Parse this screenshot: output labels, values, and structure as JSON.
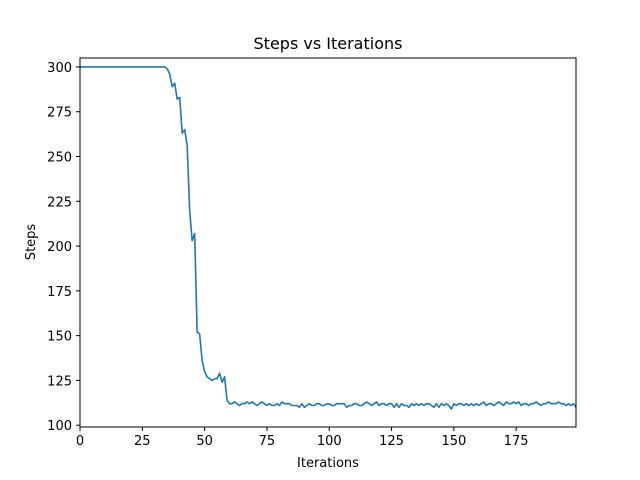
{
  "chart_data": {
    "type": "line",
    "title": "Steps vs Iterations",
    "xlabel": "Iterations",
    "ylabel": "Steps",
    "xlim": [
      0,
      199
    ],
    "ylim": [
      99,
      305
    ],
    "xticks": [
      0,
      25,
      50,
      75,
      100,
      125,
      150,
      175
    ],
    "yticks": [
      100,
      125,
      150,
      175,
      200,
      225,
      250,
      275,
      300
    ],
    "grid": false,
    "series": [
      {
        "color": "#1f77b4",
        "values": [
          300,
          300,
          300,
          300,
          300,
          300,
          300,
          300,
          300,
          300,
          300,
          300,
          300,
          300,
          300,
          300,
          300,
          300,
          300,
          300,
          300,
          300,
          300,
          300,
          300,
          300,
          300,
          300,
          300,
          300,
          300,
          300,
          300,
          300,
          300,
          299,
          296,
          289,
          291,
          282,
          283,
          263,
          265,
          256,
          220,
          203,
          207,
          152,
          151,
          136,
          130,
          127,
          126,
          125,
          126,
          126,
          129,
          124,
          127,
          114,
          112,
          112,
          113,
          112,
          111,
          112,
          112,
          113,
          112,
          113,
          112,
          111,
          112,
          113,
          112,
          111,
          112,
          111,
          111,
          112,
          111,
          113,
          112,
          112,
          112,
          111,
          111,
          111,
          110,
          112,
          110,
          111,
          112,
          111,
          111,
          112,
          112,
          111,
          111,
          112,
          112,
          111,
          111,
          112,
          112,
          112,
          112,
          110,
          111,
          111,
          112,
          112,
          111,
          111,
          112,
          113,
          112,
          111,
          112,
          113,
          111,
          112,
          112,
          111,
          112,
          112,
          110,
          112,
          110,
          112,
          111,
          111,
          110,
          112,
          111,
          112,
          111,
          112,
          111,
          112,
          112,
          111,
          110,
          112,
          110,
          112,
          111,
          112,
          111,
          109,
          112,
          111,
          112,
          112,
          111,
          112,
          111,
          112,
          111,
          112,
          111,
          112,
          113,
          111,
          112,
          112,
          111,
          112,
          113,
          112,
          111,
          113,
          112,
          112,
          113,
          112,
          113,
          111,
          112,
          112,
          111,
          112,
          112,
          113,
          112,
          111,
          112,
          112,
          113,
          112,
          112,
          112,
          113,
          112,
          112,
          111,
          112,
          111,
          112,
          110
        ]
      }
    ]
  }
}
